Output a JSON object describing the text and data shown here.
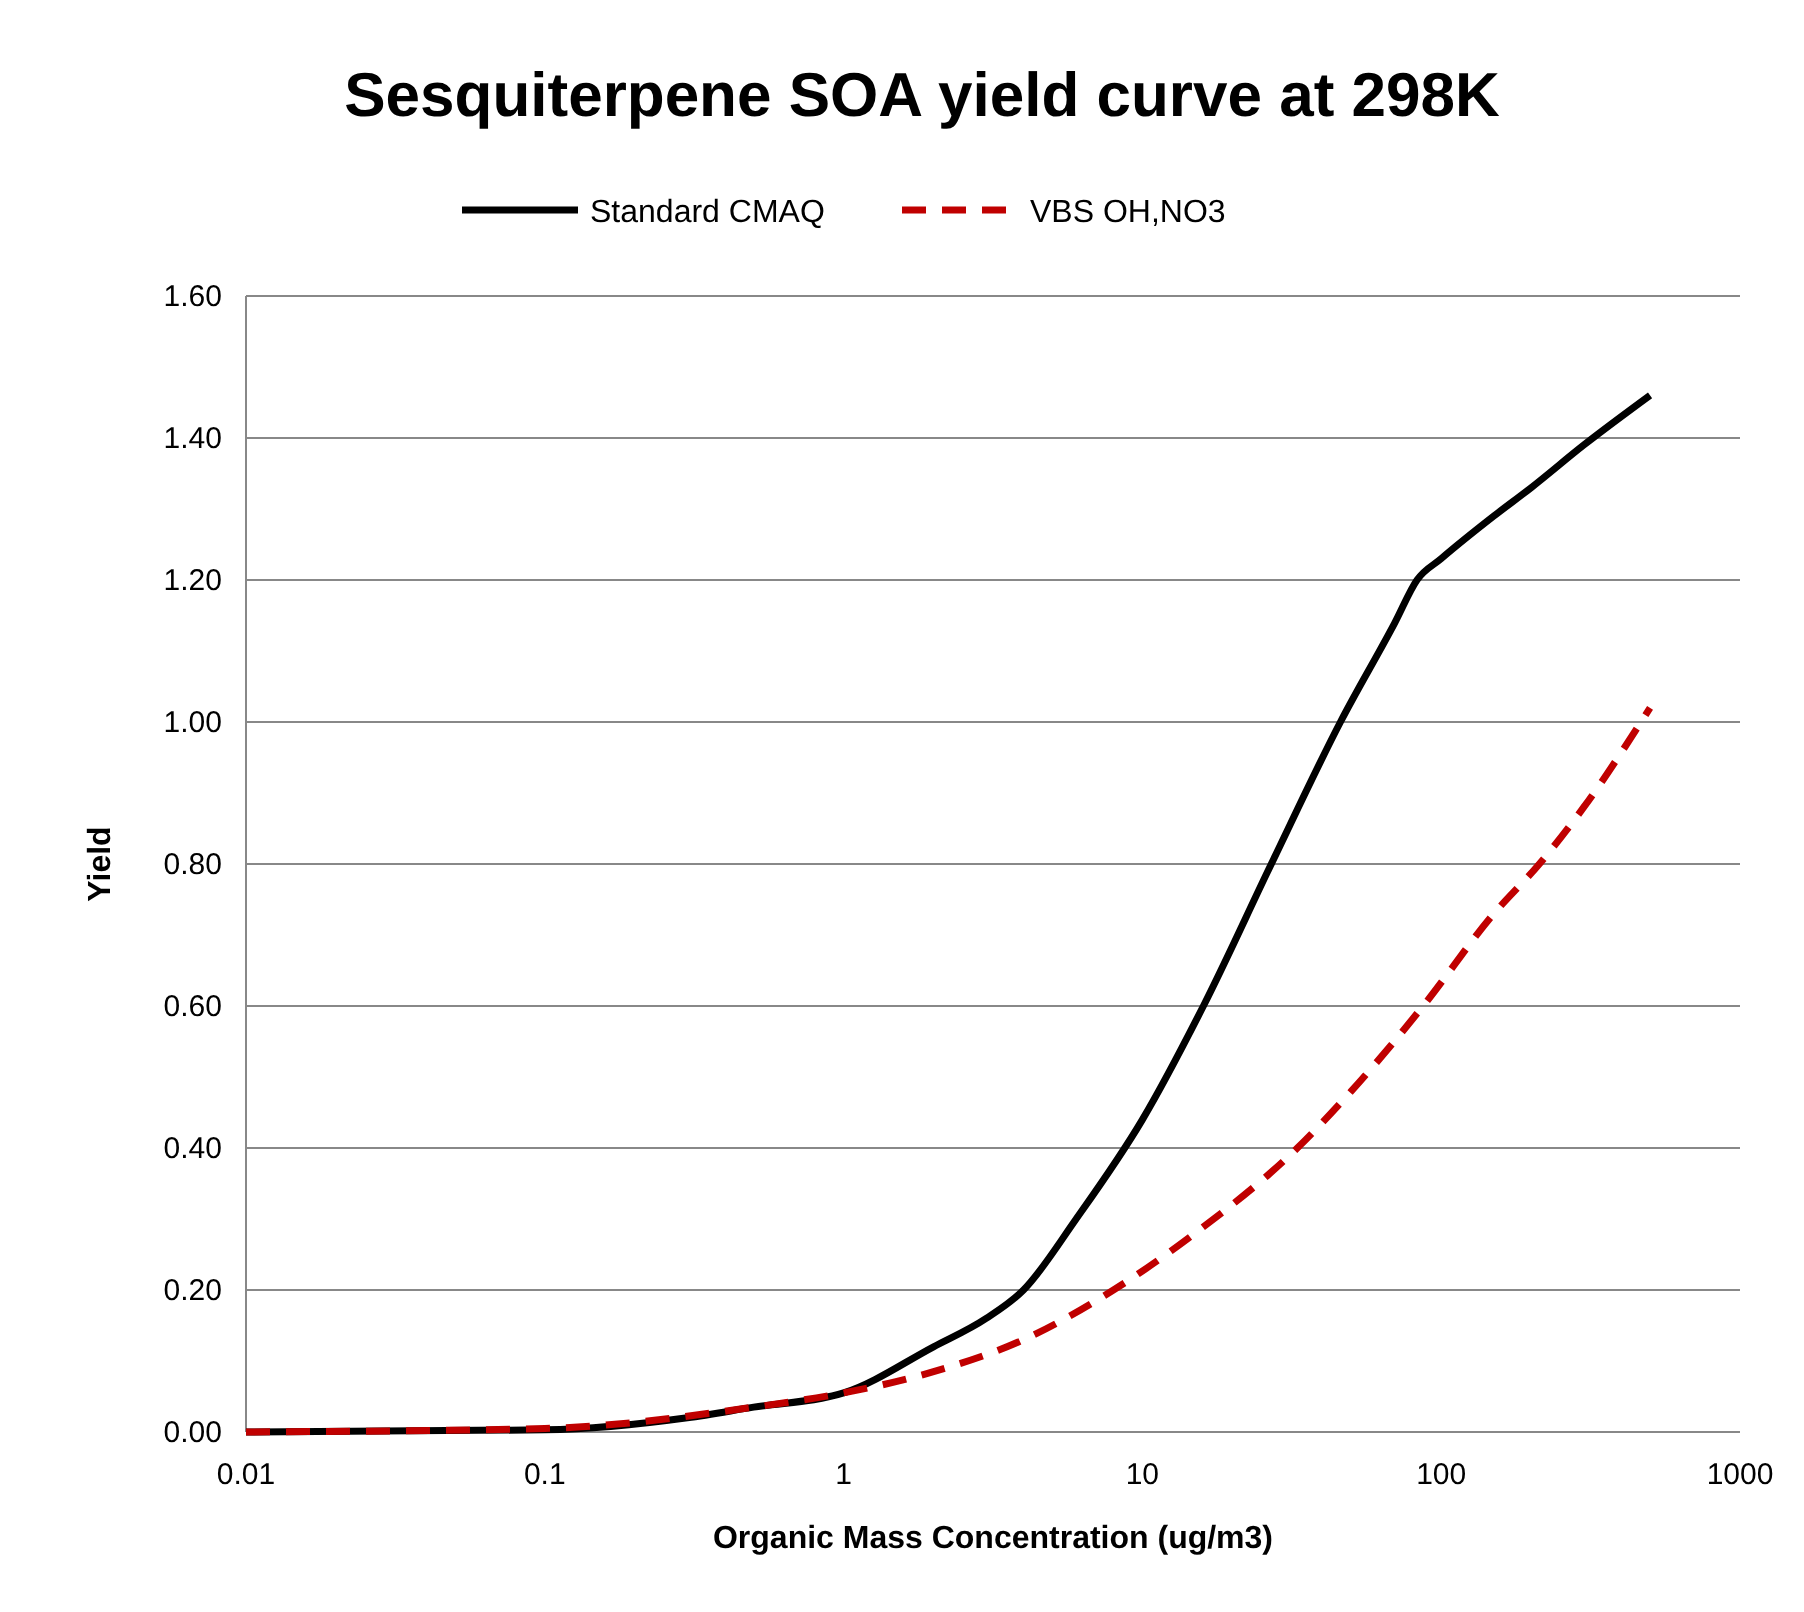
{
  "chart_data": {
    "type": "line",
    "title": "Sesquiterpene SOA yield curve at 298K",
    "xlabel": "Organic Mass Concentration (ug/m3)",
    "ylabel": "Yield",
    "log": "x",
    "grid": "y",
    "legend": "top",
    "xlim": [
      0.01,
      1000
    ],
    "xticks": [
      {
        "value": 0.01,
        "label": "0.01"
      },
      {
        "value": 0.1,
        "label": "0.1"
      },
      1,
      10,
      100,
      1000
    ],
    "ylim": [
      0,
      1.6
    ],
    "yticks": [
      {
        "value": 0,
        "label": "0.00"
      },
      {
        "value": 0.2,
        "label": "0.20"
      },
      {
        "value": 0.4,
        "label": "0.40"
      },
      {
        "value": 0.6,
        "label": "0.60"
      },
      {
        "value": 0.8,
        "label": "0.80"
      },
      {
        "value": 1,
        "label": "1.00"
      },
      {
        "value": 1.2,
        "label": "1.20"
      },
      {
        "value": 1.4,
        "label": "1.40"
      },
      {
        "value": 1.6,
        "label": "1.60"
      }
    ],
    "series": [
      {
        "name": "Standard CMAQ",
        "color": "#000000",
        "line_style": "solid",
        "x": [
          0.01,
          0.1,
          0.3,
          0.5,
          1,
          2,
          3,
          4,
          6,
          10,
          16,
          27,
          46,
          70,
          83,
          100,
          150,
          200,
          300,
          500
        ],
        "values": [
          0,
          0.003,
          0.02,
          0.035,
          0.055,
          0.12,
          0.16,
          0.2,
          0.3,
          0.44,
          0.6,
          0.8,
          1.0,
          1.14,
          1.2,
          1.23,
          1.29,
          1.33,
          1.39,
          1.46
        ]
      },
      {
        "name": "VBS OH,NO3",
        "color": "#c00000",
        "line_style": "dashed",
        "x": [
          0.01,
          0.1,
          0.5,
          1,
          2,
          4,
          8,
          15,
          33,
          50,
          87,
          150,
          213,
          300,
          500
        ],
        "values": [
          0,
          0.005,
          0.035,
          0.055,
          0.085,
          0.13,
          0.2,
          0.28,
          0.4,
          0.48,
          0.6,
          0.73,
          0.8,
          0.88,
          1.02
        ]
      }
    ]
  }
}
